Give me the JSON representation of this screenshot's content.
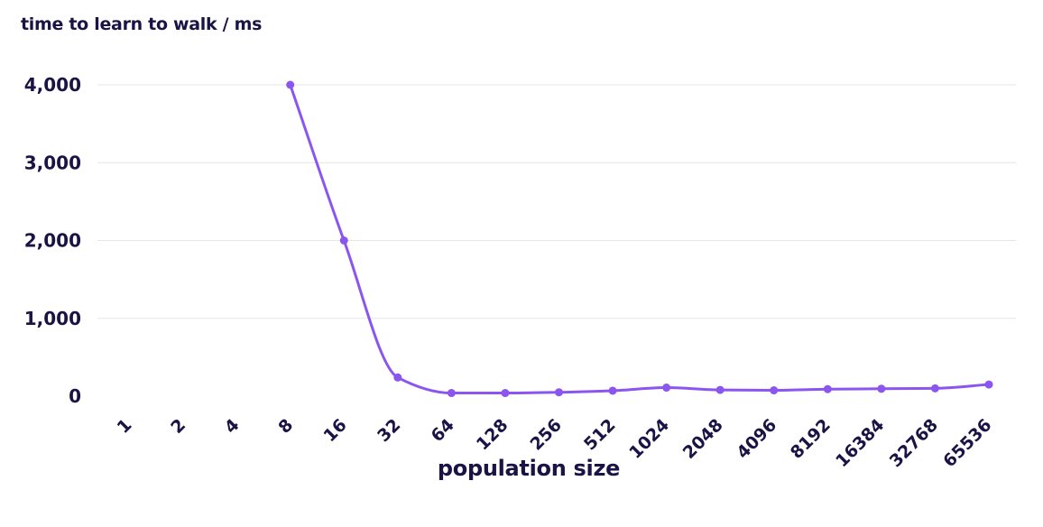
{
  "chart_data": {
    "type": "line",
    "title": "",
    "ylabel": "time to learn to walk / ms",
    "xlabel": "population size",
    "categories": [
      "1",
      "2",
      "4",
      "8",
      "16",
      "32",
      "64",
      "128",
      "256",
      "512",
      "1024",
      "2048",
      "4096",
      "8192",
      "16384",
      "32768",
      "65536"
    ],
    "series": [
      {
        "values": [
          null,
          null,
          null,
          4000,
          2000,
          240,
          40,
          40,
          50,
          70,
          110,
          80,
          75,
          90,
          95,
          100,
          150
        ],
        "color": "#8b55f0"
      }
    ],
    "yticks": [
      "0",
      "1,000",
      "2,000",
      "3,000",
      "4,000"
    ],
    "ytick_values": [
      0,
      1000,
      2000,
      3000,
      4000
    ],
    "ylim": [
      0,
      4000
    ],
    "grid": true,
    "smooth": true
  }
}
